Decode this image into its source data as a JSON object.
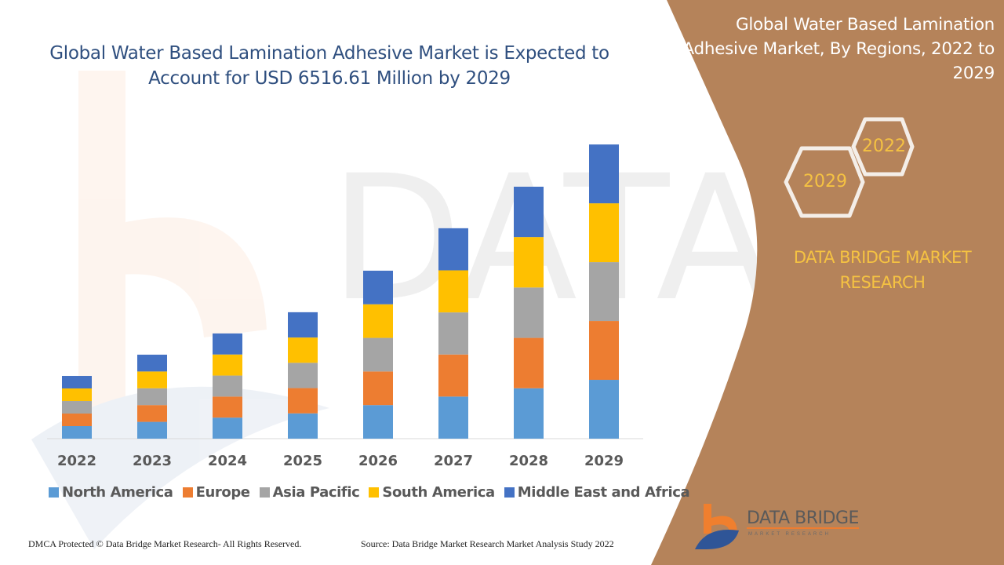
{
  "header": {
    "title": "Global Water Based Lamination Adhesive Market is Expected to Account for USD 6516.61 Million by 2029"
  },
  "side_panel": {
    "title": "Global Water Based Lamination Adhesive Market, By Regions, 2022 to 2029",
    "hex_years": [
      "2022",
      "2029"
    ],
    "brand": "DATA BRIDGE MARKET RESEARCH",
    "logo_text": "DATA BRIDGE",
    "logo_subtext": "MARKET RESEARCH",
    "background_color": "#B5835A"
  },
  "footer": {
    "copyright": "DMCA Protected © Data Bridge Market Research- All Rights Reserved.",
    "source": "Source: Data Bridge Market Research Market Analysis Study 2022"
  },
  "chart_data": {
    "type": "bar",
    "stacked": true,
    "title": "Global Water Based Lamination Adhesive Market is Expected to Account for USD 6516.61 Million by 2029",
    "xlabel": "",
    "ylabel": "",
    "categories": [
      "2022",
      "2023",
      "2024",
      "2025",
      "2026",
      "2027",
      "2028",
      "2029"
    ],
    "series": [
      {
        "name": "North America",
        "color": "#5B9BD5",
        "values": [
          278,
          372,
          466,
          560,
          744,
          932,
          1116,
          1303
        ]
      },
      {
        "name": "Europe",
        "color": "#ED7D31",
        "values": [
          278,
          372,
          466,
          560,
          744,
          932,
          1116,
          1303
        ]
      },
      {
        "name": "Asia Pacific",
        "color": "#A5A5A5",
        "values": [
          278,
          372,
          466,
          560,
          744,
          932,
          1116,
          1303
        ]
      },
      {
        "name": "South America",
        "color": "#FFC000",
        "values": [
          278,
          372,
          466,
          560,
          744,
          932,
          1116,
          1303
        ]
      },
      {
        "name": "Middle East and Africa",
        "color": "#4472C4",
        "values": [
          278,
          372,
          466,
          560,
          744,
          932,
          1116,
          1303
        ]
      }
    ],
    "ylim": [
      0,
      6517
    ],
    "y_axis_visible": false,
    "grid": false,
    "legend_position": "bottom"
  }
}
